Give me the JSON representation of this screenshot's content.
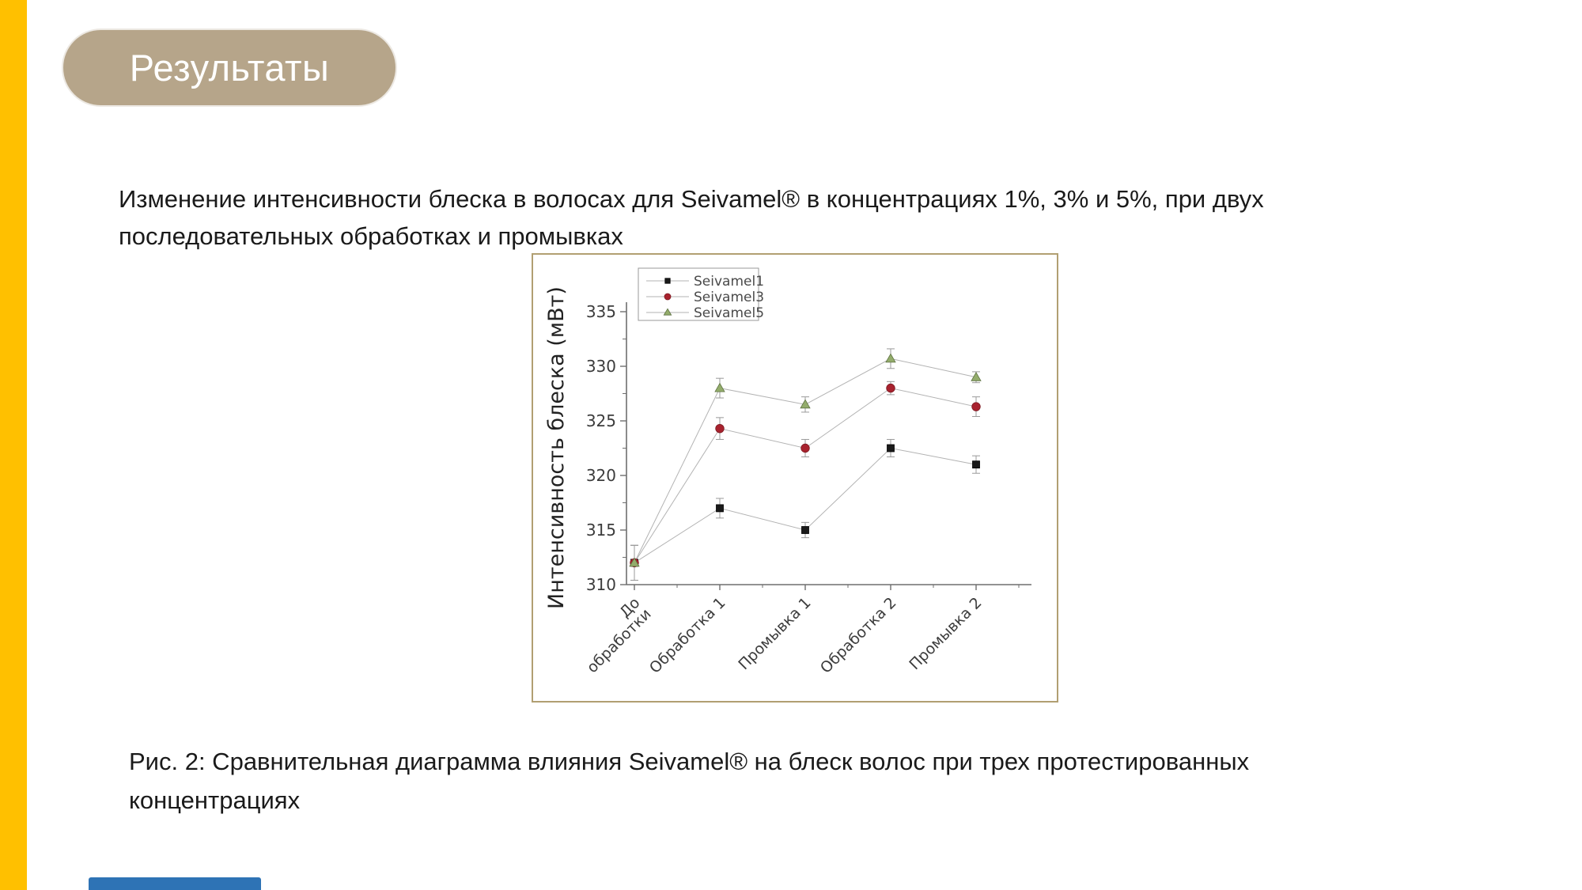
{
  "slide": {
    "title": "Результаты",
    "body_lines": [
      "Изменение интенсивности блеска в волосах для Seivamel®  в концентрациях 1%, 3% и 5%, при двух",
      "последовательных обработках и промывках"
    ],
    "caption_lines": [
      "Рис. 2: Сравнительная диаграмма влияния Seivamel® на блеск волос при трех протестированных",
      "концентрациях"
    ],
    "colors": {
      "accent_bar": "#FFC000",
      "title_badge_bg": "#B6A58A",
      "title_text": "#FFFFFF",
      "chart_frame_border": "#B19F72",
      "bottom_bar": "#2E73B5",
      "body_text": "#1A1A1A"
    }
  },
  "chart_data": {
    "type": "line",
    "title": "",
    "xlabel": "",
    "ylabel": "Интенсивность блеска (мВт)",
    "ylim": [
      310,
      335
    ],
    "yticks": [
      310,
      315,
      320,
      325,
      330,
      335
    ],
    "y_minor_step": 2.5,
    "grid": false,
    "legend_position": "inside top-left",
    "categories": [
      "До\nобработки",
      "Обработка 1",
      "Промывка 1",
      "Обработка 2",
      "Промывка 2"
    ],
    "connector_color": "#B3B3B3",
    "error_bar_color": "#9A9A9A",
    "axis_color": "#6E6E6E",
    "tick_label_color": "#3C3C3C",
    "series": [
      {
        "name": "Seivamel1",
        "marker": "square",
        "color": "#1A1A1A",
        "edge": "#000000",
        "values": [
          312,
          317,
          315,
          322.5,
          321
        ],
        "errors": [
          1.6,
          0.9,
          0.7,
          0.8,
          0.8
        ]
      },
      {
        "name": "Seivamel3",
        "marker": "circle",
        "color": "#A8222E",
        "edge": "#7D1A22",
        "values": [
          312,
          324.3,
          322.5,
          328,
          326.3
        ],
        "errors": [
          1.6,
          1.0,
          0.8,
          0.6,
          0.9
        ]
      },
      {
        "name": "Seivamel5",
        "marker": "triangle",
        "color": "#93AC6B",
        "edge": "#5C7140",
        "values": [
          312,
          328,
          326.5,
          330.7,
          329
        ],
        "errors": [
          1.6,
          0.9,
          0.7,
          0.9,
          0.5
        ]
      }
    ]
  }
}
